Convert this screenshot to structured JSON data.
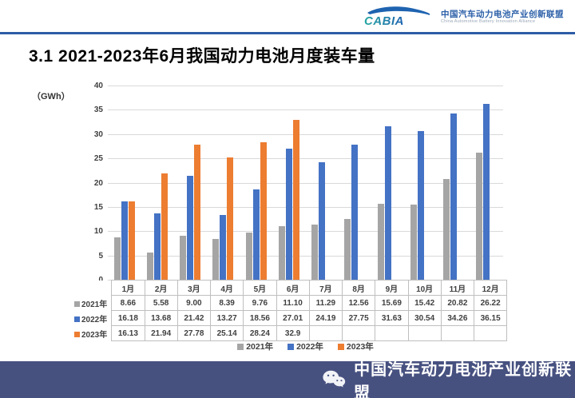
{
  "header": {
    "logo_text": "CABIA",
    "org_cn": "中国汽车动力电池产业创新联盟",
    "org_en": "China Automotive Battery Innovation Alliance"
  },
  "page": {
    "title": "3.1 2021-2023年6月我国动力电池月度装车量"
  },
  "chart_data": {
    "type": "bar",
    "title": "2021-2023年6月我国动力电池月度装车量",
    "unit_label": "（GWh）",
    "xlabel": "",
    "ylabel": "GWh",
    "ylim": [
      0,
      40
    ],
    "ytick_step": 5,
    "grid": true,
    "legend_position": "bottom",
    "data_table_shown": true,
    "categories": [
      "1月",
      "2月",
      "3月",
      "4月",
      "5月",
      "6月",
      "7月",
      "8月",
      "9月",
      "10月",
      "11月",
      "12月"
    ],
    "series": [
      {
        "name": "2021年",
        "color": "#a5a5a5",
        "values": [
          "8.66",
          "5.58",
          "9.00",
          "8.39",
          "9.76",
          "11.10",
          "11.29",
          "12.56",
          "15.69",
          "15.42",
          "20.82",
          "26.22"
        ]
      },
      {
        "name": "2022年",
        "color": "#4472c4",
        "values": [
          "16.18",
          "13.68",
          "21.42",
          "13.27",
          "18.56",
          "27.01",
          "24.19",
          "27.75",
          "31.63",
          "30.54",
          "34.26",
          "36.15"
        ]
      },
      {
        "name": "2023年",
        "color": "#ed7d31",
        "values": [
          "16.13",
          "21.94",
          "27.78",
          "25.14",
          "28.24",
          "32.9",
          "",
          "",
          "",
          "",
          "",
          ""
        ]
      }
    ]
  },
  "footer": {
    "text": "中国汽车动力电池产业创新联盟",
    "bg_color": "#475180"
  },
  "colors": {
    "header_rule": "#2d5ca6",
    "gridline": "#d9d9d9",
    "table_border": "#bfbfbf"
  }
}
